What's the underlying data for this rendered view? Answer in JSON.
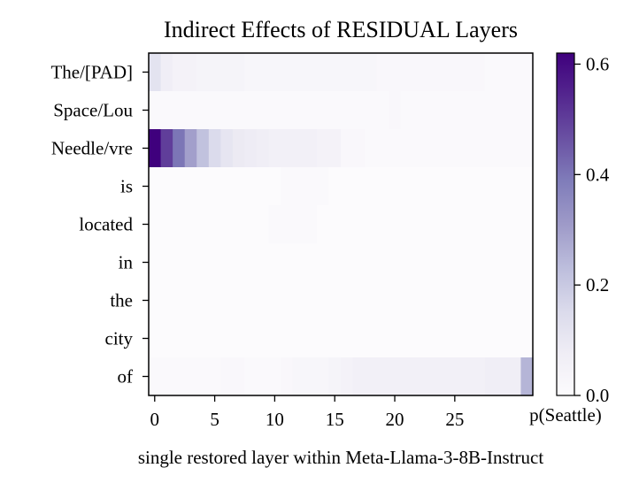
{
  "chart_data": {
    "type": "heatmap",
    "title": "Indirect Effects of RESIDUAL Layers",
    "xlabel": "single restored layer within Meta-Llama-3-8B-Instruct",
    "ylabel": "",
    "x_ticks": [
      0,
      5,
      10,
      15,
      20,
      25
    ],
    "x_range": [
      0,
      31
    ],
    "rows": [
      "The/[PAD]",
      "Space/Lou",
      "Needle/vre",
      "is",
      "located",
      "in",
      "the",
      "city",
      "of"
    ],
    "colorbar": {
      "label": "p(Seattle)",
      "range": [
        0.0,
        0.62
      ],
      "ticks": [
        "0.0",
        "0.2",
        "0.4",
        "0.6"
      ],
      "tick_values": [
        0.0,
        0.2,
        0.4,
        0.6
      ],
      "colormap": "Purples"
    },
    "values": [
      [
        0.12,
        0.07,
        0.05,
        0.05,
        0.04,
        0.04,
        0.04,
        0.04,
        0.03,
        0.03,
        0.03,
        0.03,
        0.03,
        0.03,
        0.03,
        0.03,
        0.03,
        0.03,
        0.03,
        0.02,
        0.02,
        0.02,
        0.02,
        0.02,
        0.02,
        0.02,
        0.02,
        0.02,
        0.01,
        0.01,
        0.01,
        0.01
      ],
      [
        0.01,
        0.01,
        0.01,
        0.01,
        0.01,
        0.01,
        0.01,
        0.01,
        0.01,
        0.01,
        0.01,
        0.01,
        0.01,
        0.01,
        0.01,
        0.01,
        0.01,
        0.01,
        0.01,
        0.01,
        0.02,
        0.01,
        0.01,
        0.01,
        0.01,
        0.01,
        0.01,
        0.01,
        0.01,
        0.01,
        0.01,
        0.01
      ],
      [
        0.62,
        0.5,
        0.4,
        0.3,
        0.22,
        0.15,
        0.11,
        0.09,
        0.08,
        0.07,
        0.06,
        0.06,
        0.06,
        0.06,
        0.05,
        0.05,
        0.02,
        0.02,
        0.01,
        0.01,
        0.01,
        0.01,
        0.01,
        0.01,
        0.01,
        0.01,
        0.01,
        0.01,
        0.01,
        0.01,
        0.01,
        0.01
      ],
      [
        0.0,
        0.0,
        0.0,
        0.0,
        0.0,
        0.0,
        0.0,
        0.0,
        0.0,
        0.0,
        0.0,
        0.01,
        0.01,
        0.01,
        0.01,
        0.0,
        0.0,
        0.0,
        0.0,
        0.0,
        0.0,
        0.0,
        0.0,
        0.0,
        0.0,
        0.0,
        0.0,
        0.0,
        0.0,
        0.0,
        0.0,
        0.0
      ],
      [
        0.0,
        0.0,
        0.0,
        0.0,
        0.0,
        0.0,
        0.0,
        0.0,
        0.0,
        0.0,
        0.01,
        0.01,
        0.01,
        0.01,
        0.0,
        0.0,
        0.0,
        0.0,
        0.0,
        0.0,
        0.0,
        0.0,
        0.0,
        0.0,
        0.0,
        0.0,
        0.0,
        0.0,
        0.0,
        0.0,
        0.0,
        0.0
      ],
      [
        0.0,
        0.0,
        0.0,
        0.0,
        0.0,
        0.0,
        0.0,
        0.0,
        0.0,
        0.0,
        0.0,
        0.0,
        0.0,
        0.0,
        0.0,
        0.0,
        0.0,
        0.0,
        0.0,
        0.0,
        0.0,
        0.0,
        0.0,
        0.0,
        0.0,
        0.0,
        0.0,
        0.0,
        0.0,
        0.0,
        0.0,
        0.0
      ],
      [
        0.0,
        0.0,
        0.0,
        0.0,
        0.0,
        0.0,
        0.0,
        0.0,
        0.0,
        0.0,
        0.0,
        0.0,
        0.0,
        0.0,
        0.0,
        0.0,
        0.0,
        0.0,
        0.0,
        0.0,
        0.0,
        0.0,
        0.0,
        0.0,
        0.0,
        0.0,
        0.0,
        0.0,
        0.0,
        0.0,
        0.0,
        0.0
      ],
      [
        0.0,
        0.0,
        0.0,
        0.0,
        0.0,
        0.0,
        0.0,
        0.0,
        0.0,
        0.0,
        0.0,
        0.0,
        0.0,
        0.0,
        0.0,
        0.0,
        0.0,
        0.0,
        0.0,
        0.0,
        0.0,
        0.0,
        0.0,
        0.0,
        0.0,
        0.0,
        0.0,
        0.0,
        0.0,
        0.0,
        0.0,
        0.0
      ],
      [
        0.01,
        0.01,
        0.01,
        0.01,
        0.01,
        0.01,
        0.02,
        0.02,
        0.01,
        0.01,
        0.01,
        0.02,
        0.03,
        0.03,
        0.03,
        0.04,
        0.05,
        0.06,
        0.06,
        0.06,
        0.06,
        0.06,
        0.06,
        0.06,
        0.06,
        0.06,
        0.06,
        0.06,
        0.07,
        0.07,
        0.07,
        0.25
      ]
    ]
  }
}
